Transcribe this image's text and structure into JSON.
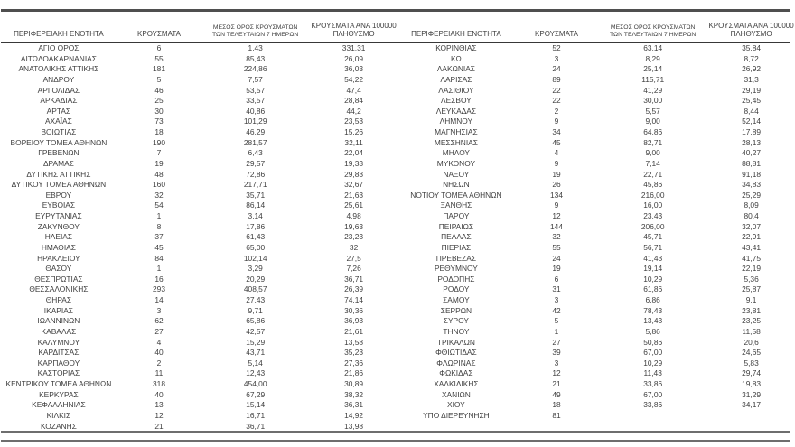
{
  "colors": {
    "background": "#ffffff",
    "text": "#3f3f3f",
    "rule": "#6e6e6e",
    "rule_dark": "#383838"
  },
  "columns": {
    "region": "ΠΕΡΙΦΕΡΕΙΑΚΗ ΕΝΟΤΗΤΑ",
    "cases": "ΚΡΟΥΣΜΑΤΑ",
    "avg7_line1": "ΜΕΣΟΣ ΟΡΟΣ ΚΡΟΥΣΜΑΤΩΝ",
    "avg7_line2": "ΤΩΝ ΤΕΛΕΥΤΑΙΩΝ 7 ΗΜΕΡΩΝ",
    "per100k_line1": "ΚΡΟΥΣΜΑΤΑ ΑΝΑ 100000",
    "per100k_line2": "ΠΛΗΘΥΣΜΟ"
  },
  "left_table": {
    "rows": [
      [
        "ΑΓΙΟ ΟΡΟΣ",
        "6",
        "1,43",
        "331,31"
      ],
      [
        "ΑΙΤΩΛΟΑΚΑΡΝΑΝΙΑΣ",
        "55",
        "85,43",
        "26,09"
      ],
      [
        "ΑΝΑΤΟΛΙΚΗΣ ΑΤΤΙΚΗΣ",
        "181",
        "224,86",
        "36,03"
      ],
      [
        "ΑΝΔΡΟΥ",
        "5",
        "7,57",
        "54,22"
      ],
      [
        "ΑΡΓΟΛΙΔΑΣ",
        "46",
        "53,57",
        "47,4"
      ],
      [
        "ΑΡΚΑΔΙΑΣ",
        "25",
        "33,57",
        "28,84"
      ],
      [
        "ΑΡΤΑΣ",
        "30",
        "40,86",
        "44,2"
      ],
      [
        "ΑΧΑΪΑΣ",
        "73",
        "101,29",
        "23,53"
      ],
      [
        "ΒΟΙΩΤΙΑΣ",
        "18",
        "46,29",
        "15,26"
      ],
      [
        "ΒΟΡΕΙΟΥ ΤΟΜΕΑ ΑΘΗΝΩΝ",
        "190",
        "281,57",
        "32,11"
      ],
      [
        "ΓΡΕΒΕΝΩΝ",
        "7",
        "6,43",
        "22,04"
      ],
      [
        "ΔΡΑΜΑΣ",
        "19",
        "29,57",
        "19,33"
      ],
      [
        "ΔΥΤΙΚΗΣ ΑΤΤΙΚΗΣ",
        "48",
        "72,86",
        "29,83"
      ],
      [
        "ΔΥΤΙΚΟΥ ΤΟΜΕΑ ΑΘΗΝΩΝ",
        "160",
        "217,71",
        "32,67"
      ],
      [
        "ΕΒΡΟΥ",
        "32",
        "35,71",
        "21,63"
      ],
      [
        "ΕΥΒΟΙΑΣ",
        "54",
        "86,14",
        "25,61"
      ],
      [
        "ΕΥΡΥΤΑΝΙΑΣ",
        "1",
        "3,14",
        "4,98"
      ],
      [
        "ΖΑΚΥΝΘΟΥ",
        "8",
        "17,86",
        "19,63"
      ],
      [
        "ΗΛΕΙΑΣ",
        "37",
        "61,43",
        "23,23"
      ],
      [
        "ΗΜΑΘΙΑΣ",
        "45",
        "65,00",
        "32"
      ],
      [
        "ΗΡΑΚΛΕΙΟΥ",
        "84",
        "102,14",
        "27,5"
      ],
      [
        "ΘΑΣΟΥ",
        "1",
        "3,29",
        "7,26"
      ],
      [
        "ΘΕΣΠΡΩΤΙΑΣ",
        "16",
        "20,29",
        "36,71"
      ],
      [
        "ΘΕΣΣΑΛΟΝΙΚΗΣ",
        "293",
        "408,57",
        "26,39"
      ],
      [
        "ΘΗΡΑΣ",
        "14",
        "27,43",
        "74,14"
      ],
      [
        "ΙΚΑΡΙΑΣ",
        "3",
        "9,71",
        "30,36"
      ],
      [
        "ΙΩΑΝΝΙΝΩΝ",
        "62",
        "65,86",
        "36,93"
      ],
      [
        "ΚΑΒΑΛΑΣ",
        "27",
        "42,57",
        "21,61"
      ],
      [
        "ΚΑΛΥΜΝΟΥ",
        "4",
        "15,29",
        "13,58"
      ],
      [
        "ΚΑΡΔΙΤΣΑΣ",
        "40",
        "43,71",
        "35,23"
      ],
      [
        "ΚΑΡΠΑΘΟΥ",
        "2",
        "5,14",
        "27,36"
      ],
      [
        "ΚΑΣΤΟΡΙΑΣ",
        "11",
        "12,43",
        "21,86"
      ],
      [
        "ΚΕΝΤΡΙΚΟΥ ΤΟΜΕΑ ΑΘΗΝΩΝ",
        "318",
        "454,00",
        "30,89"
      ],
      [
        "ΚΕΡΚΥΡΑΣ",
        "40",
        "67,29",
        "38,32"
      ],
      [
        "ΚΕΦΑΛΛΗΝΙΑΣ",
        "13",
        "15,14",
        "36,31"
      ],
      [
        "ΚΙΛΚΙΣ",
        "12",
        "16,71",
        "14,92"
      ],
      [
        "ΚΟΖΑΝΗΣ",
        "21",
        "36,71",
        "13,98"
      ]
    ]
  },
  "right_table": {
    "rows": [
      [
        "ΚΟΡΙΝΘΙΑΣ",
        "52",
        "63,14",
        "35,84"
      ],
      [
        "ΚΩ",
        "3",
        "8,29",
        "8,72"
      ],
      [
        "ΛΑΚΩΝΙΑΣ",
        "24",
        "25,14",
        "26,92"
      ],
      [
        "ΛΑΡΙΣΑΣ",
        "89",
        "115,71",
        "31,3"
      ],
      [
        "ΛΑΣΙΘΙΟΥ",
        "22",
        "41,29",
        "29,19"
      ],
      [
        "ΛΕΣΒΟΥ",
        "22",
        "30,00",
        "25,45"
      ],
      [
        "ΛΕΥΚΑΔΑΣ",
        "2",
        "5,57",
        "8,44"
      ],
      [
        "ΛΗΜΝΟΥ",
        "9",
        "9,00",
        "52,14"
      ],
      [
        "ΜΑΓΝΗΣΙΑΣ",
        "34",
        "64,86",
        "17,89"
      ],
      [
        "ΜΕΣΣΗΝΙΑΣ",
        "45",
        "82,71",
        "28,13"
      ],
      [
        "ΜΗΛΟΥ",
        "4",
        "9,00",
        "40,27"
      ],
      [
        "ΜΥΚΟΝΟΥ",
        "9",
        "7,14",
        "88,81"
      ],
      [
        "ΝΑΞΟΥ",
        "19",
        "22,71",
        "91,18"
      ],
      [
        "ΝΗΣΩΝ",
        "26",
        "45,86",
        "34,83"
      ],
      [
        "ΝΟΤΙΟΥ ΤΟΜΕΑ ΑΘΗΝΩΝ",
        "134",
        "216,00",
        "25,29"
      ],
      [
        "ΞΑΝΘΗΣ",
        "9",
        "16,00",
        "8,09"
      ],
      [
        "ΠΑΡΟΥ",
        "12",
        "23,43",
        "80,4"
      ],
      [
        "ΠΕΙΡΑΙΩΣ",
        "144",
        "206,00",
        "32,07"
      ],
      [
        "ΠΕΛΛΑΣ",
        "32",
        "45,71",
        "22,91"
      ],
      [
        "ΠΙΕΡΙΑΣ",
        "55",
        "56,71",
        "43,41"
      ],
      [
        "ΠΡΕΒΕΖΑΣ",
        "24",
        "41,43",
        "41,75"
      ],
      [
        "ΡΕΘΥΜΝΟΥ",
        "19",
        "19,14",
        "22,19"
      ],
      [
        "ΡΟΔΟΠΗΣ",
        "6",
        "10,29",
        "5,36"
      ],
      [
        "ΡΟΔΟΥ",
        "31",
        "61,86",
        "25,87"
      ],
      [
        "ΣΑΜΟΥ",
        "3",
        "6,86",
        "9,1"
      ],
      [
        "ΣΕΡΡΩΝ",
        "42",
        "78,43",
        "23,81"
      ],
      [
        "ΣΥΡΟΥ",
        "5",
        "13,43",
        "23,25"
      ],
      [
        "ΤΗΝΟΥ",
        "1",
        "5,86",
        "11,58"
      ],
      [
        "ΤΡΙΚΑΛΩΝ",
        "27",
        "50,86",
        "20,6"
      ],
      [
        "ΦΘΙΩΤΙΔΑΣ",
        "39",
        "67,00",
        "24,65"
      ],
      [
        "ΦΛΩΡΙΝΑΣ",
        "3",
        "10,29",
        "5,83"
      ],
      [
        "ΦΩΚΙΔΑΣ",
        "12",
        "11,43",
        "29,74"
      ],
      [
        "ΧΑΛΚΙΔΙΚΗΣ",
        "21",
        "33,86",
        "19,83"
      ],
      [
        "ΧΑΝΙΩΝ",
        "49",
        "67,00",
        "31,29"
      ],
      [
        "ΧΙΟΥ",
        "18",
        "33,86",
        "34,17"
      ],
      [
        "ΥΠΟ ΔΙΕΡΕΥΝΗΣΗ",
        "81",
        "",
        ""
      ]
    ]
  }
}
